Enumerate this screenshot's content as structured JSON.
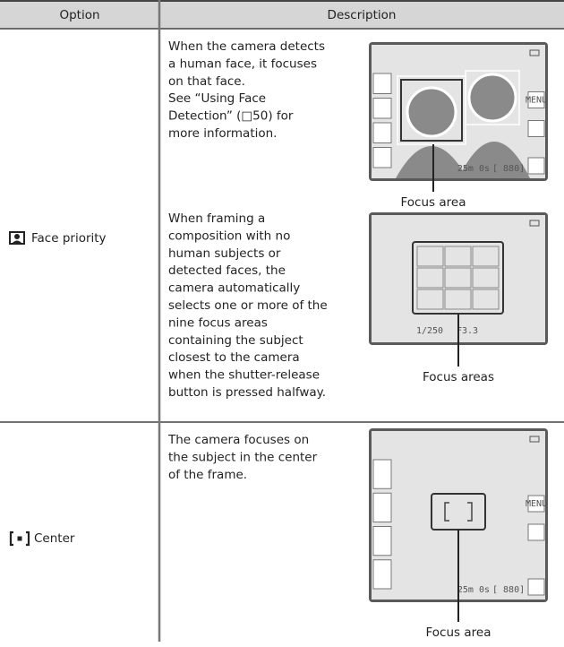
{
  "header": {
    "option": "Option",
    "description": "Description"
  },
  "rows": [
    {
      "option": "Face priority",
      "entries": [
        {
          "lines": [
            "When the camera detects",
            "a human face, it focuses",
            "on that face.",
            "See “Using Face",
            "Detection” (□50) for",
            "more information."
          ],
          "callout": "Focus area",
          "screen": {
            "menu": "MENU",
            "time": "25m 0s",
            "frames": "[ 880]"
          }
        },
        {
          "lines": [
            "When framing a",
            "composition with no",
            "human subjects or",
            "detected faces, the",
            "camera automatically",
            "selects one or more of the",
            "nine focus areas",
            "containing the subject",
            "closest to the camera",
            "when the shutter-release",
            "button is pressed halfway."
          ],
          "callout": "Focus areas",
          "screen": {
            "shutter": "1/250",
            "aperture": "F3.3"
          }
        }
      ]
    },
    {
      "option": "Center",
      "entries": [
        {
          "lines": [
            "The camera focuses on",
            "the subject in the center",
            "of the frame."
          ],
          "callout": "Focus area",
          "screen": {
            "menu": "MENU",
            "time": "25m 0s",
            "frames": "[ 880]"
          }
        }
      ]
    }
  ]
}
